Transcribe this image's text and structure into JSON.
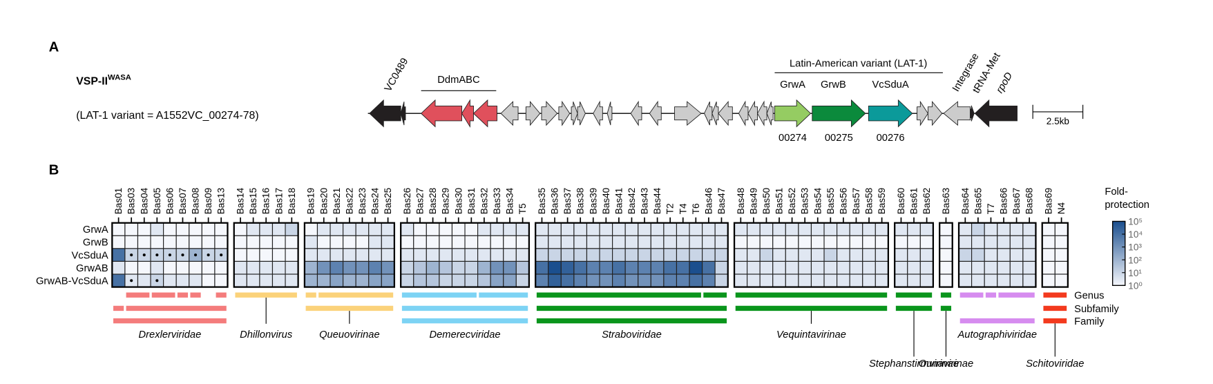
{
  "panel_a": {
    "label": "A",
    "element": "VSP-II",
    "element_superscript": "WASA",
    "note": "(LAT-1 variant = A1552VC_00274-78)",
    "gene_labels": [
      "VC0489",
      "DdmABC",
      "Latin-American variant (LAT-1)",
      "GrwA",
      "GrwB",
      "VcSduA",
      "Integrase",
      "tRNA-Met",
      "rpoD"
    ],
    "locus_tags": [
      "00274",
      "00275",
      "00276"
    ],
    "scale_bar": "2.5kb"
  },
  "panel_b": {
    "label": "B",
    "rows": [
      "GrwA",
      "GrwB",
      "VcSduA",
      "GrwAB",
      "GrwAB-VcSduA"
    ],
    "groups": [
      {
        "columns": [
          "Bas01",
          "Bas03",
          "Bas04",
          "Bas05",
          "Bas06",
          "Bas07",
          "Bas08",
          "Bas09",
          "Bas13"
        ],
        "values": [
          [
            1,
            1,
            1,
            3,
            1,
            1,
            1,
            1,
            1
          ],
          [
            1,
            1,
            1,
            1,
            1,
            1,
            1,
            1,
            1
          ],
          [
            10000,
            10,
            10,
            10,
            10,
            10,
            100,
            10,
            10
          ],
          [
            3,
            1,
            1,
            3,
            1,
            1,
            1,
            1,
            1
          ],
          [
            10000,
            3,
            3,
            10,
            3,
            3,
            3,
            1,
            1
          ]
        ],
        "dots": [
          [
            2,
            1
          ],
          [
            2,
            2
          ],
          [
            2,
            3
          ],
          [
            2,
            4
          ],
          [
            2,
            5
          ],
          [
            2,
            6
          ],
          [
            2,
            7
          ],
          [
            2,
            8
          ],
          [
            4,
            1
          ],
          [
            4,
            3
          ]
        ]
      },
      {
        "columns": [
          "Bas14",
          "Bas15",
          "Bas16",
          "Bas17",
          "Bas18"
        ],
        "values": [
          [
            1,
            3,
            3,
            3,
            10
          ],
          [
            1,
            1,
            1,
            1,
            1
          ],
          [
            1,
            1,
            1,
            1,
            1
          ],
          [
            3,
            3,
            3,
            3,
            3
          ],
          [
            3,
            3,
            3,
            3,
            3
          ]
        ],
        "dots": []
      },
      {
        "columns": [
          "Bas19",
          "Bas20",
          "Bas21",
          "Bas22",
          "Bas23",
          "Bas24",
          "Bas25"
        ],
        "values": [
          [
            1,
            3,
            3,
            3,
            3,
            3,
            3
          ],
          [
            3,
            1,
            1,
            1,
            1,
            3,
            3
          ],
          [
            3,
            3,
            3,
            3,
            3,
            3,
            3
          ],
          [
            100,
            1000,
            3000,
            1000,
            1000,
            3000,
            1000
          ],
          [
            100,
            100,
            300,
            100,
            100,
            300,
            300
          ]
        ],
        "dots": []
      },
      {
        "columns": [
          "Bas26",
          "Bas27",
          "Bas28",
          "Bas29",
          "Bas30",
          "Bas31",
          "Bas32",
          "Bas33",
          "Bas34",
          "T5"
        ],
        "values": [
          [
            3,
            1,
            1,
            1,
            1,
            1,
            3,
            3,
            3,
            3
          ],
          [
            1,
            1,
            1,
            1,
            1,
            1,
            1,
            1,
            1,
            1
          ],
          [
            3,
            3,
            3,
            3,
            3,
            3,
            3,
            3,
            3,
            3
          ],
          [
            10,
            30,
            100,
            30,
            10,
            10,
            100,
            1000,
            1000,
            30
          ],
          [
            10,
            30,
            30,
            10,
            10,
            10,
            30,
            300,
            300,
            10
          ]
        ],
        "dots": []
      },
      {
        "columns": [
          "Bas35",
          "Bas36",
          "Bas37",
          "Bas38",
          "Bas39",
          "Bas40",
          "Bas41",
          "Bas42",
          "Bas43",
          "Bas44",
          "T2",
          "T4",
          "T6",
          "Bas46",
          "Bas47"
        ],
        "values": [
          [
            3,
            3,
            3,
            3,
            3,
            3,
            3,
            3,
            3,
            3,
            3,
            3,
            3,
            3,
            3
          ],
          [
            3,
            3,
            3,
            3,
            3,
            3,
            3,
            3,
            3,
            3,
            3,
            3,
            3,
            3,
            3
          ],
          [
            10,
            10,
            10,
            10,
            10,
            10,
            10,
            10,
            10,
            10,
            10,
            10,
            10,
            10,
            10
          ],
          [
            10000,
            100000,
            30000,
            10000,
            3000,
            3000,
            10000,
            3000,
            3000,
            3000,
            10000,
            10000,
            100000,
            10000,
            10
          ],
          [
            3000,
            30000,
            10000,
            3000,
            1000,
            1000,
            3000,
            1000,
            1000,
            1000,
            3000,
            3000,
            10000,
            3000,
            10
          ]
        ],
        "dots": []
      },
      {
        "columns": [
          "Bas48",
          "Bas49",
          "Bas50",
          "Bas51",
          "Bas52",
          "Bas53",
          "Bas54",
          "Bas55",
          "Bas56",
          "Bas57",
          "Bas58",
          "Bas59"
        ],
        "values": [
          [
            3,
            3,
            3,
            3,
            3,
            3,
            3,
            3,
            3,
            3,
            3,
            3
          ],
          [
            1,
            1,
            1,
            1,
            1,
            1,
            1,
            1,
            1,
            1,
            1,
            1
          ],
          [
            3,
            3,
            10,
            3,
            3,
            3,
            3,
            10,
            3,
            3,
            3,
            3
          ],
          [
            3,
            3,
            3,
            3,
            3,
            3,
            3,
            3,
            3,
            3,
            3,
            3
          ],
          [
            3,
            3,
            3,
            3,
            3,
            3,
            3,
            3,
            3,
            3,
            3,
            3
          ]
        ],
        "dots": []
      },
      {
        "columns": [
          "Bas60",
          "Bas61",
          "Bas62"
        ],
        "values": [
          [
            3,
            3,
            3
          ],
          [
            1,
            1,
            1
          ],
          [
            3,
            3,
            3
          ],
          [
            3,
            3,
            3
          ],
          [
            3,
            3,
            3
          ]
        ],
        "dots": []
      },
      {
        "columns": [
          "Bas63"
        ],
        "values": [
          [
            1
          ],
          [
            1
          ],
          [
            1
          ],
          [
            1
          ],
          [
            1
          ]
        ],
        "dots": []
      },
      {
        "columns": [
          "Bas64",
          "Bas65",
          "T7",
          "Bas66",
          "Bas67",
          "Bas68"
        ],
        "values": [
          [
            3,
            10,
            3,
            3,
            3,
            3
          ],
          [
            3,
            3,
            3,
            3,
            3,
            3
          ],
          [
            10,
            10,
            3,
            3,
            3,
            3
          ],
          [
            3,
            3,
            3,
            3,
            3,
            3
          ],
          [
            3,
            3,
            3,
            3,
            3,
            3
          ]
        ],
        "dots": []
      },
      {
        "columns": [
          "Bas69",
          "N4"
        ],
        "values": [
          [
            1,
            1
          ],
          [
            1,
            1
          ],
          [
            1,
            1
          ],
          [
            1,
            1
          ],
          [
            1,
            1
          ]
        ],
        "dots": []
      }
    ],
    "legend": {
      "title": "Fold-protection",
      "scale": "log",
      "lim": [
        1,
        100000
      ],
      "colors": [
        "#f5f7fc",
        "#1b4f8e"
      ],
      "ticks": [
        {
          "value": 1,
          "label": "10⁰"
        },
        {
          "value": 10,
          "label": "10¹"
        },
        {
          "value": 100,
          "label": "10²"
        },
        {
          "value": 1000,
          "label": "10³"
        },
        {
          "value": 10000,
          "label": "10⁴"
        },
        {
          "value": 100000,
          "label": "10⁵"
        }
      ]
    },
    "levels": [
      "Genus",
      "Subfamily",
      "Family"
    ],
    "taxa": [
      {
        "name": "Drexlerviridae",
        "color": "#f47c7c",
        "genus": [
          [
            "Bas03",
            "Bas04"
          ],
          [
            "Bas05",
            "Bas06"
          ],
          [
            "Bas07"
          ],
          [
            "Bas08"
          ],
          [
            "Bas13"
          ]
        ],
        "subfamily": [
          [
            "Bas01"
          ],
          [
            "Bas03",
            "Bas13"
          ]
        ],
        "family": [
          [
            "Bas01",
            "Bas13"
          ]
        ]
      },
      {
        "name": "Dhillonvirus",
        "color": "#fbd27a",
        "genus": [
          [
            "Bas14",
            "Bas18"
          ]
        ],
        "subfamily": [],
        "family": []
      },
      {
        "name": "Queuovirinae",
        "color": "#fbd27a",
        "genus": [
          [
            "Bas19"
          ],
          [
            "Bas20",
            "Bas25"
          ]
        ],
        "subfamily": [
          [
            "Bas19",
            "Bas25"
          ]
        ],
        "family": []
      },
      {
        "name": "Demerecviridae",
        "color": "#7dd3f4",
        "genus": [
          [
            "Bas26",
            "Bas31"
          ],
          [
            "Bas32",
            "T5"
          ]
        ],
        "subfamily": [
          [
            "Bas26",
            "T5"
          ]
        ],
        "family": [
          [
            "Bas26",
            "T5"
          ]
        ]
      },
      {
        "name": "Straboviridae",
        "color": "#0a951c",
        "genus": [
          [
            "Bas35",
            "T6"
          ],
          [
            "Bas46",
            "Bas47"
          ]
        ],
        "subfamily": [
          [
            "Bas35",
            "Bas47"
          ]
        ],
        "family": [
          [
            "Bas35",
            "Bas47"
          ]
        ]
      },
      {
        "name": "Vequintavirinae",
        "color": "#0a951c",
        "genus": [
          [
            "Bas48",
            "Bas59"
          ]
        ],
        "subfamily": [
          [
            "Bas48",
            "Bas59"
          ]
        ],
        "family": []
      },
      {
        "name": "Stephanstirmvirinae",
        "color": "#0a951c",
        "genus": [
          [
            "Bas60",
            "Bas62"
          ]
        ],
        "subfamily": [
          [
            "Bas60",
            "Bas62"
          ]
        ],
        "family": []
      },
      {
        "name": "Ounavirinae",
        "color": "#0a951c",
        "genus": [
          [
            "Bas63"
          ]
        ],
        "subfamily": [
          [
            "Bas63"
          ]
        ],
        "family": []
      },
      {
        "name": "Autographiviridae",
        "color": "#d68cef",
        "genus": [
          [
            "Bas64",
            "Bas65"
          ],
          [
            "T7"
          ],
          [
            "Bas66",
            "Bas68"
          ]
        ],
        "subfamily": [],
        "family": [
          [
            "Bas64",
            "Bas68"
          ]
        ]
      },
      {
        "name": "Schitoviridae",
        "color": "#f33a1e",
        "genus": [
          [
            "Bas69",
            "N4"
          ]
        ],
        "subfamily": [
          [
            "Bas69",
            "N4"
          ]
        ],
        "family": [
          [
            "Bas69",
            "N4"
          ]
        ]
      }
    ]
  }
}
